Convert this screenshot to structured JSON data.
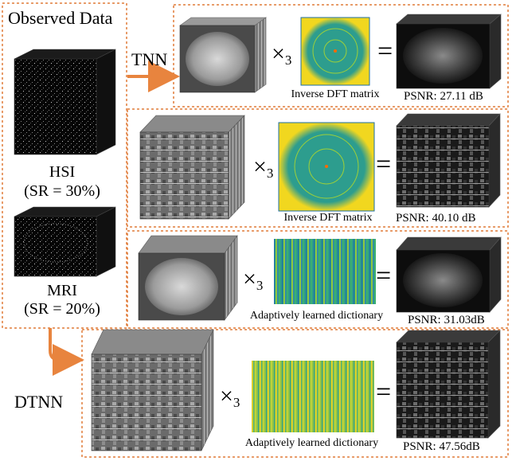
{
  "colors": {
    "dashed_border": "#e07b39",
    "arrow": "#e8843e"
  },
  "observed": {
    "title": "Observed Data",
    "hsi_label": "HSI",
    "hsi_sr": "(SR = 30%)",
    "mri_label": "MRI",
    "mri_sr": "(SR = 20%)"
  },
  "methods": {
    "tnn": "TNN",
    "dtnn": "DTNN"
  },
  "operator": {
    "times": "×",
    "sub": "3",
    "equals": "="
  },
  "rows": [
    {
      "transform": "Inverse DFT matrix",
      "psnr": "PSNR: 27.11 dB"
    },
    {
      "transform": "Inverse DFT matrix",
      "psnr": "PSNR: 40.10 dB"
    },
    {
      "transform": "Adaptively learned dictionary",
      "psnr": "PSNR: 31.03dB"
    },
    {
      "transform": "Adaptively learned dictionary",
      "psnr": "PSNR: 47.56dB"
    }
  ]
}
